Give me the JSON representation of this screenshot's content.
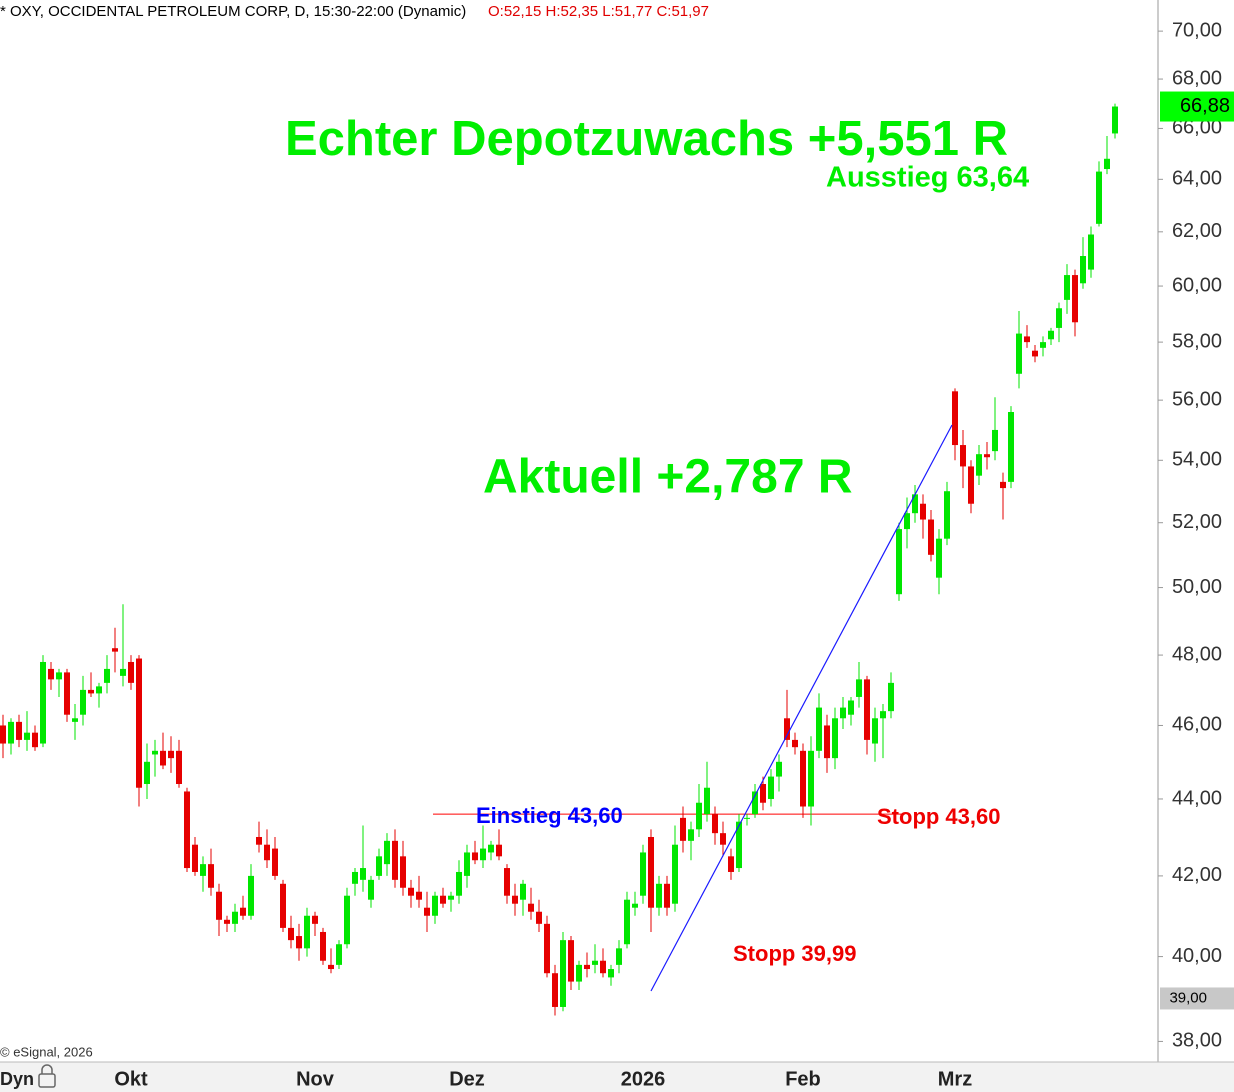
{
  "chart_data": {
    "type": "candlestick",
    "title": "* OXY, OCCIDENTAL PETROLEUM CORP, D, 15:30-22:00 (Dynamic)",
    "ohlc_readout": "O:52,15 H:52,35 L:51,77 C:51,97",
    "credit": "© eSignal, 2026",
    "mode_label": "Dyn",
    "log_scale": true,
    "up_color": "#00e600",
    "down_color": "#e60000",
    "ylim": [
      37.53,
      71.33
    ],
    "yticks": [
      {
        "value": 38,
        "label": "38,00"
      },
      {
        "value": 40,
        "label": "40,00"
      },
      {
        "value": 42,
        "label": "42,00"
      },
      {
        "value": 44,
        "label": "44,00"
      },
      {
        "value": 46,
        "label": "46,00"
      },
      {
        "value": 48,
        "label": "48,00"
      },
      {
        "value": 50,
        "label": "50,00"
      },
      {
        "value": 52,
        "label": "52,00"
      },
      {
        "value": 54,
        "label": "54,00"
      },
      {
        "value": 56,
        "label": "56,00"
      },
      {
        "value": 58,
        "label": "58,00"
      },
      {
        "value": 60,
        "label": "60,00"
      },
      {
        "value": 62,
        "label": "62,00"
      },
      {
        "value": 64,
        "label": "64,00"
      },
      {
        "value": 66,
        "label": "66,00"
      },
      {
        "value": 68,
        "label": "68,00"
      },
      {
        "value": 70,
        "label": "70,00"
      }
    ],
    "categories": [
      null,
      null,
      null,
      null,
      null,
      null,
      null,
      null,
      null,
      null,
      null,
      null,
      null,
      null,
      null,
      null,
      "Okt",
      null,
      null,
      null,
      null,
      null,
      null,
      null,
      null,
      null,
      null,
      null,
      null,
      null,
      null,
      null,
      null,
      null,
      null,
      null,
      null,
      null,
      null,
      "Nov",
      null,
      null,
      null,
      null,
      null,
      null,
      null,
      null,
      null,
      null,
      null,
      null,
      null,
      null,
      null,
      null,
      null,
      null,
      "Dez",
      null,
      null,
      null,
      null,
      null,
      null,
      null,
      null,
      null,
      null,
      null,
      null,
      null,
      null,
      null,
      null,
      null,
      null,
      null,
      null,
      null,
      "2026",
      null,
      null,
      null,
      null,
      null,
      null,
      null,
      null,
      null,
      null,
      null,
      null,
      null,
      null,
      null,
      null,
      null,
      null,
      null,
      "Feb",
      null,
      null,
      null,
      null,
      null,
      null,
      null,
      null,
      null,
      null,
      null,
      null,
      null,
      null,
      null,
      null,
      null,
      null,
      "Mrz",
      null,
      null,
      null,
      null,
      null,
      null,
      null,
      null,
      null,
      null,
      null,
      null,
      null,
      null,
      null,
      null,
      null,
      null,
      null,
      null
    ],
    "open": [
      46,
      45.5,
      46.1,
      45.6,
      45.8,
      45.5,
      47.6,
      47.3,
      47.5,
      46.1,
      46.3,
      47,
      46.9,
      47.2,
      48.2,
      47.4,
      47.8,
      47.9,
      44.4,
      45.2,
      45.3,
      45.3,
      45.3,
      44.2,
      42.8,
      42,
      42.3,
      41.6,
      40.9,
      40.8,
      41.2,
      41,
      43,
      42.8,
      42.7,
      41.8,
      40.7,
      40.5,
      40.2,
      41,
      40.6,
      39.8,
      39.8,
      40.3,
      41.8,
      41.9,
      41.4,
      42,
      42.3,
      42.9,
      42.5,
      41.7,
      41.6,
      41.2,
      41,
      41.5,
      41.4,
      41.5,
      42,
      42.6,
      42.4,
      42.6,
      42.8,
      42.2,
      41.5,
      41.4,
      41.3,
      41.1,
      40.8,
      39.6,
      38.8,
      40.4,
      39.4,
      39.8,
      39.8,
      39.9,
      39.5,
      39.8,
      40.3,
      41.2,
      41.5,
      43,
      41.2,
      41.8,
      41.3,
      43.5,
      42.9,
      43.2,
      43.6,
      43.6,
      43.1,
      42.5,
      42.2,
      43.5,
      43.6,
      44.4,
      44,
      44.6,
      46.2,
      45.6,
      45.3,
      43.8,
      45.3,
      46,
      45.1,
      46.2,
      46.3,
      46.8,
      47.3,
      45.5,
      46.2,
      46.4,
      49.8,
      51.8,
      52.3,
      52.6,
      52.1,
      50.3,
      51.5,
      56.3,
      54.5,
      53.8,
      53.5,
      54.2,
      54.3,
      53.3,
      53.3,
      56.9,
      58.2,
      57.7,
      57.8,
      58.1,
      58.5,
      59.5,
      60.4,
      60.1,
      60.6,
      62.3,
      64.4,
      65.8
    ],
    "high": [
      46.3,
      46.2,
      46.3,
      46.4,
      46,
      48,
      47.8,
      47.6,
      47.6,
      46.6,
      47.4,
      47.5,
      47.2,
      48,
      48.8,
      49.5,
      48,
      48,
      45.5,
      45.6,
      45.8,
      45.7,
      45.6,
      44.3,
      43,
      42.5,
      42.7,
      41.8,
      41,
      41.3,
      41.5,
      42.3,
      43.4,
      43.2,
      43,
      41.9,
      41,
      40.8,
      41.2,
      41.1,
      40.7,
      40.2,
      40.4,
      41.7,
      42.2,
      43.3,
      42,
      42.7,
      43.1,
      43.2,
      42.9,
      41.9,
      42,
      41.6,
      41.6,
      41.7,
      41.6,
      42.4,
      42.8,
      42.9,
      43.3,
      42.9,
      43.2,
      42.3,
      41.8,
      41.9,
      41.7,
      41.4,
      41,
      39.8,
      40.6,
      40.5,
      39.9,
      40.1,
      40.3,
      40.2,
      39.8,
      40.4,
      41.6,
      41.6,
      42.8,
      43.2,
      42,
      42,
      43.3,
      43.8,
      43.4,
      44.4,
      45,
      43.8,
      43.4,
      42.7,
      43.6,
      43.6,
      44.4,
      44.6,
      44.8,
      45.2,
      47,
      45.8,
      45.5,
      45.7,
      46.9,
      46.3,
      46.5,
      46.8,
      46.8,
      47.8,
      47.4,
      46.5,
      46.6,
      47.5,
      52,
      52.8,
      53.2,
      52.9,
      52.4,
      51.8,
      53.3,
      56.4,
      55,
      54,
      54.5,
      54.6,
      56.1,
      53.6,
      55.8,
      59.1,
      58.6,
      57.9,
      58.2,
      58.5,
      59.4,
      60.8,
      60.6,
      61.8,
      62.2,
      64.7,
      65.7,
      67
    ],
    "low": [
      45.1,
      45.2,
      45.4,
      45.3,
      45.3,
      45.4,
      47,
      46.8,
      46.1,
      45.6,
      46,
      46.8,
      46.5,
      46.9,
      47.5,
      47.1,
      47,
      43.8,
      44,
      44.6,
      44.8,
      44.7,
      44.3,
      42.1,
      42,
      41.6,
      41.5,
      40.5,
      40.6,
      40.6,
      40.9,
      40.9,
      42.6,
      42.2,
      41.9,
      40.6,
      40.2,
      39.9,
      40,
      40.5,
      39.8,
      39.6,
      39.7,
      40.2,
      41.5,
      41.6,
      41.2,
      41.9,
      42,
      41.7,
      41.5,
      41.2,
      41.2,
      40.6,
      40.8,
      41.2,
      41.1,
      41.3,
      41.7,
      42.3,
      42.2,
      42.4,
      42.4,
      41.3,
      41,
      41,
      40.9,
      40.6,
      39.5,
      38.6,
      38.7,
      39.2,
      39.2,
      39.5,
      39.6,
      39.5,
      39.3,
      39.6,
      40.2,
      41,
      41.3,
      40.6,
      41,
      41,
      41.1,
      42.6,
      42.4,
      43,
      43.4,
      42.8,
      42.5,
      41.9,
      42.1,
      43.3,
      43.5,
      43.7,
      43.8,
      44.2,
      45.4,
      45.2,
      43.5,
      43.3,
      45.1,
      44.7,
      44.8,
      45.9,
      46,
      46.5,
      45.2,
      45,
      45.1,
      46.2,
      49.6,
      51.2,
      52,
      51.5,
      50.8,
      49.8,
      51.3,
      54,
      53.1,
      52.3,
      53.2,
      53.7,
      54,
      52.1,
      53.1,
      56.4,
      57.8,
      57.3,
      57.5,
      57.9,
      58,
      59,
      58.2,
      59.9,
      60.3,
      62.2,
      64.2,
      65.6
    ],
    "close": [
      45.5,
      46.1,
      45.6,
      45.8,
      45.4,
      47.8,
      47.3,
      47.5,
      46.3,
      46.2,
      47,
      46.9,
      47.1,
      47.6,
      48.1,
      47.6,
      47.2,
      44.3,
      45,
      45.3,
      44.9,
      45.1,
      44.4,
      42.2,
      42.1,
      42.3,
      41.7,
      40.9,
      40.8,
      41.1,
      41,
      42,
      42.8,
      42.4,
      42,
      40.7,
      40.4,
      40.2,
      41,
      40.8,
      39.9,
      39.7,
      40.3,
      41.5,
      42.1,
      42.2,
      41.9,
      42.5,
      42.9,
      41.9,
      41.7,
      41.5,
      41.4,
      41,
      41.5,
      41.3,
      41.5,
      42.1,
      42.6,
      42.4,
      42.7,
      42.8,
      42.5,
      41.5,
      41.3,
      41.8,
      41.1,
      40.8,
      39.6,
      38.8,
      40.4,
      39.4,
      39.8,
      39.7,
      39.9,
      39.6,
      39.7,
      40.2,
      41.4,
      41.3,
      42.6,
      41.2,
      41.8,
      41.2,
      42.8,
      42.9,
      43.2,
      43.9,
      44.3,
      43.1,
      42.8,
      42.1,
      43.4,
      43.5,
      44.2,
      43.9,
      44.6,
      45,
      45.6,
      45.4,
      43.8,
      45.3,
      46.5,
      45.1,
      46.2,
      46.5,
      46.7,
      47.3,
      45.6,
      46.2,
      46.4,
      47.2,
      51.8,
      52.3,
      52.9,
      52.1,
      51,
      51.5,
      53,
      54.5,
      53.8,
      52.6,
      54.2,
      54.1,
      55,
      53.1,
      55.6,
      58.3,
      58,
      57.5,
      58,
      58.4,
      59.2,
      60.4,
      58.7,
      61.1,
      61.9,
      64.3,
      64.8,
      66.88
    ],
    "hlines": [
      {
        "value": 43.6,
        "color": "#ff0000"
      }
    ],
    "price_markers": [
      {
        "value": 66.88,
        "label": "66,88",
        "color": "#00ff00"
      },
      {
        "value": 39,
        "label": "39,00",
        "color": "#c8c8c8"
      }
    ],
    "annotations": [
      "Echter Depotzuwachs +5,551 R",
      "Ausstieg 63,64",
      "Aktuell +2,787 R",
      "Einstieg 43,60",
      "Stopp 43,60",
      "Stopp 39,99"
    ]
  }
}
